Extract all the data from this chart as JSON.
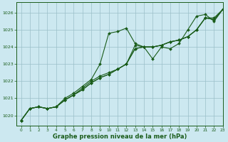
{
  "title": "Graphe pression niveau de la mer (hPa)",
  "bg_color": "#cce8f0",
  "grid_color": "#9bbfc8",
  "line_color": "#1a5c1a",
  "xlim": [
    -0.5,
    23
  ],
  "ylim": [
    1019.4,
    1026.6
  ],
  "yticks": [
    1020,
    1021,
    1022,
    1023,
    1024,
    1025,
    1026
  ],
  "xticks": [
    0,
    1,
    2,
    3,
    4,
    5,
    6,
    7,
    8,
    9,
    10,
    11,
    12,
    13,
    14,
    15,
    16,
    17,
    18,
    19,
    20,
    21,
    22,
    23
  ],
  "line1_x": [
    0,
    1,
    2,
    3,
    4,
    5,
    6,
    7,
    8,
    9,
    10,
    11,
    12,
    13,
    14,
    15,
    16,
    17,
    18,
    19,
    20,
    21,
    22,
    23
  ],
  "line1_y": [
    1019.7,
    1020.4,
    1020.5,
    1020.4,
    1020.5,
    1021.0,
    1021.3,
    1021.7,
    1022.1,
    1023.0,
    1024.8,
    1024.9,
    1025.1,
    1024.2,
    1024.0,
    1023.3,
    1024.0,
    1023.9,
    1024.2,
    1025.0,
    1025.8,
    1025.9,
    1025.5,
    1026.2
  ],
  "line2_x": [
    0,
    1,
    2,
    3,
    4,
    5,
    6,
    7,
    8,
    9,
    10,
    11,
    12,
    13,
    14,
    15,
    16,
    17,
    18,
    19,
    20,
    21,
    22,
    23
  ],
  "line2_y": [
    1019.7,
    1020.4,
    1020.5,
    1020.4,
    1020.5,
    1020.9,
    1021.2,
    1021.6,
    1022.0,
    1022.3,
    1022.5,
    1022.7,
    1023.0,
    1024.1,
    1024.0,
    1024.0,
    1024.1,
    1024.3,
    1024.4,
    1024.6,
    1025.0,
    1025.7,
    1025.7,
    1026.2
  ],
  "line3_x": [
    0,
    1,
    2,
    3,
    4,
    5,
    6,
    7,
    8,
    9,
    10,
    11,
    12,
    13,
    14,
    15,
    16,
    17,
    18,
    19,
    20,
    21,
    22,
    23
  ],
  "line3_y": [
    1019.7,
    1020.4,
    1020.5,
    1020.4,
    1020.5,
    1020.9,
    1021.2,
    1021.5,
    1021.9,
    1022.2,
    1022.4,
    1022.7,
    1023.0,
    1023.9,
    1024.0,
    1024.0,
    1024.1,
    1024.3,
    1024.4,
    1024.6,
    1025.0,
    1025.7,
    1025.6,
    1026.2
  ],
  "line4_x": [
    0,
    1,
    2,
    3,
    4,
    5,
    6,
    7,
    8,
    9,
    10,
    11,
    12,
    13,
    14,
    15,
    16,
    17,
    18,
    19,
    20,
    21,
    22,
    23
  ],
  "line4_y": [
    1019.7,
    1020.4,
    1020.5,
    1020.4,
    1020.5,
    1020.9,
    1021.2,
    1021.5,
    1021.9,
    1022.2,
    1022.4,
    1022.7,
    1023.0,
    1023.9,
    1024.0,
    1024.0,
    1024.1,
    1024.3,
    1024.4,
    1024.6,
    1025.0,
    1025.7,
    1025.6,
    1026.2
  ],
  "tick_fontsize": 4.2,
  "xlabel_fontsize": 6.0
}
